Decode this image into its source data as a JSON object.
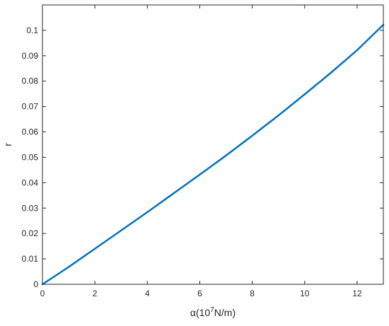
{
  "chart_data": {
    "type": "line",
    "title": "",
    "xlabel_prefix": "α(10",
    "xlabel_sup": "7",
    "xlabel_suffix": "N/m)",
    "ylabel": "r",
    "xlim": [
      0,
      13
    ],
    "ylim": [
      0,
      0.11
    ],
    "xticks": [
      0,
      2,
      4,
      6,
      8,
      10,
      12
    ],
    "yticks": [
      0,
      0.01,
      0.02,
      0.03,
      0.04,
      0.05,
      0.06,
      0.07,
      0.08,
      0.09,
      0.1
    ],
    "grid": false,
    "line_color": "#0072BD",
    "series": [
      {
        "x": [
          0,
          1,
          2,
          3,
          4,
          5,
          6,
          7,
          8,
          9,
          10,
          11,
          12,
          13
        ],
        "y": [
          0,
          0.0068,
          0.014,
          0.0212,
          0.0284,
          0.0358,
          0.0432,
          0.0507,
          0.0585,
          0.0665,
          0.0748,
          0.0833,
          0.0922,
          0.1022
        ]
      }
    ]
  }
}
